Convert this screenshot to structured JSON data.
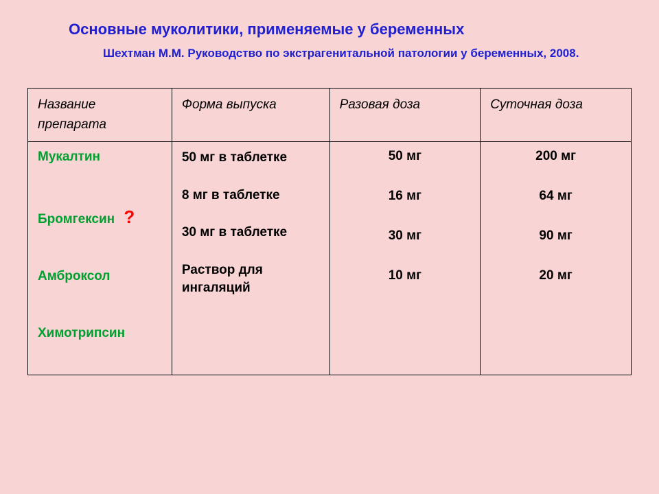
{
  "title": "Основные муколитики, применяемые у беременных",
  "subtitle": "Шехтман М.М. Руководство по экстрагенитальной патологии у беременных, 2008.",
  "headers": {
    "col1": "Название препарата",
    "col2": "Форма выпуска",
    "col3": "Разовая доза",
    "col4": "Суточная доза"
  },
  "drugs": [
    {
      "name": "Мукалтин",
      "question": false
    },
    {
      "name": "Бромгексин",
      "question": true
    },
    {
      "name": "Амброксол",
      "question": false
    },
    {
      "name": "Химотрипсин",
      "question": false
    }
  ],
  "forms": [
    "50 мг в таблетке",
    "8 мг  в таблетке",
    "30 мг в таблетке",
    "Раствор для ингаляций"
  ],
  "single_dose": [
    "50 мг",
    "16 мг",
    "30 мг",
    "10 мг"
  ],
  "daily_dose": [
    "200 мг",
    "64 мг",
    "90 мг",
    "20 мг"
  ],
  "question_mark": "?",
  "colors": {
    "background": "#f8d4d4",
    "title_color": "#2020d0",
    "drug_color": "#00a030",
    "question_color": "#ff0000",
    "border_color": "#000000"
  }
}
